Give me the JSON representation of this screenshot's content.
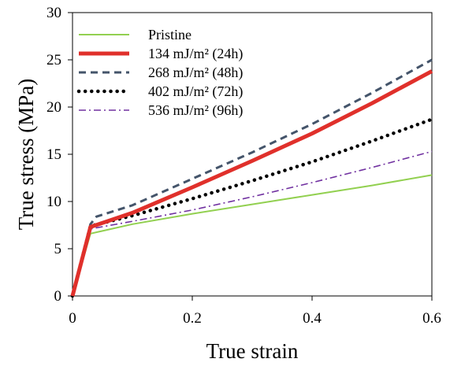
{
  "chart_data": {
    "type": "line",
    "xlabel": "True strain",
    "ylabel": "True stress (MPa)",
    "xlim": [
      0,
      0.6
    ],
    "ylim": [
      0,
      30
    ],
    "x_ticks": [
      "0",
      "0.2",
      "0.4",
      "0.6"
    ],
    "y_ticks": [
      "0",
      "5",
      "10",
      "15",
      "20",
      "25",
      "30"
    ],
    "grid": false,
    "legend_position": "top-left",
    "series": [
      {
        "name": "Pristine",
        "color": "#92d050",
        "style": "solid",
        "points": [
          [
            0,
            0
          ],
          [
            0.03,
            6.6
          ],
          [
            0.1,
            7.6
          ],
          [
            0.2,
            8.7
          ],
          [
            0.3,
            9.7
          ],
          [
            0.4,
            10.7
          ],
          [
            0.5,
            11.7
          ],
          [
            0.6,
            12.8
          ]
        ]
      },
      {
        "name": "134 mJ/m² (24h)",
        "color": "#e0302b",
        "style": "thick-solid",
        "points": [
          [
            0,
            0
          ],
          [
            0.03,
            7.3
          ],
          [
            0.1,
            8.8
          ],
          [
            0.2,
            11.5
          ],
          [
            0.3,
            14.3
          ],
          [
            0.4,
            17.2
          ],
          [
            0.5,
            20.4
          ],
          [
            0.6,
            23.8
          ]
        ]
      },
      {
        "name": "268 mJ/m² (48h)",
        "color": "#44546a",
        "style": "dashed",
        "points": [
          [
            0,
            0
          ],
          [
            0.03,
            7.6
          ],
          [
            0.04,
            8.4
          ],
          [
            0.1,
            9.6
          ],
          [
            0.2,
            12.4
          ],
          [
            0.3,
            15.2
          ],
          [
            0.4,
            18.2
          ],
          [
            0.5,
            21.5
          ],
          [
            0.6,
            25.0
          ]
        ]
      },
      {
        "name": "402 mJ/m² (72h)",
        "color": "#000000",
        "style": "dotted",
        "points": [
          [
            0,
            0
          ],
          [
            0.03,
            7.4
          ],
          [
            0.1,
            8.5
          ],
          [
            0.2,
            10.3
          ],
          [
            0.3,
            12.2
          ],
          [
            0.4,
            14.2
          ],
          [
            0.5,
            16.4
          ],
          [
            0.6,
            18.7
          ]
        ]
      },
      {
        "name": "536 mJ/m² (96h)",
        "color": "#7030a0",
        "style": "dash-dot",
        "points": [
          [
            0,
            0
          ],
          [
            0.03,
            7.1
          ],
          [
            0.1,
            7.9
          ],
          [
            0.2,
            9.1
          ],
          [
            0.3,
            10.5
          ],
          [
            0.4,
            12.0
          ],
          [
            0.5,
            13.6
          ],
          [
            0.6,
            15.3
          ]
        ]
      }
    ]
  }
}
